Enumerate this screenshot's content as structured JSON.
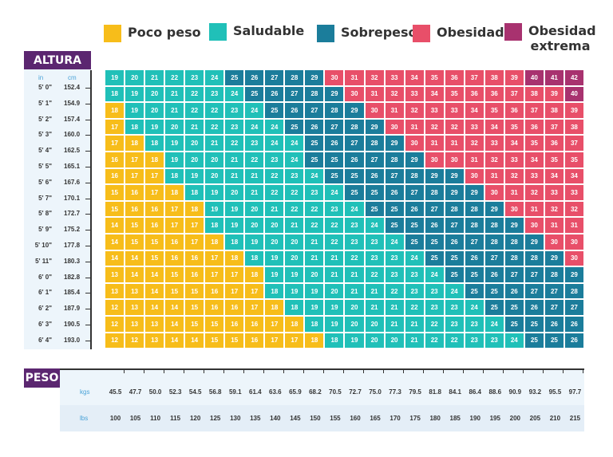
{
  "chart_data": {
    "type": "heatmap",
    "title": "",
    "legend": [
      {
        "key": "Y",
        "label": "Poco peso",
        "color": "#f7bd1a"
      },
      {
        "key": "T",
        "label": "Saludable",
        "color": "#20c0b8"
      },
      {
        "key": "B",
        "label": "Sobrepeso",
        "color": "#1b7d9b"
      },
      {
        "key": "R",
        "label": "Obesidad",
        "color": "#e84f69"
      },
      {
        "key": "P",
        "label": "Obesidad extrema",
        "color": "#a8326f"
      }
    ],
    "height_axis": {
      "title": "ALTURA",
      "unit_in": "in",
      "unit_cm": "cm"
    },
    "weight_axis": {
      "title": "PESO",
      "unit_kg": "kgs",
      "unit_lb": "lbs",
      "kgs": [
        "45.5",
        "47.7",
        "50.0",
        "52.3",
        "54.5",
        "56.8",
        "59.1",
        "61.4",
        "63.6",
        "65.9",
        "68.2",
        "70.5",
        "72.7",
        "75.0",
        "77.3",
        "79.5",
        "81.8",
        "84.1",
        "86.4",
        "88.6",
        "90.9",
        "93.2",
        "95.5",
        "97.7"
      ],
      "lbs": [
        "100",
        "105",
        "110",
        "115",
        "120",
        "125",
        "130",
        "135",
        "140",
        "145",
        "150",
        "155",
        "160",
        "165",
        "170",
        "175",
        "180",
        "185",
        "190",
        "195",
        "200",
        "205",
        "210",
        "215"
      ]
    },
    "rows": [
      {
        "in": "5' 0\"",
        "cm": "152.4",
        "bmi": [
          19,
          20,
          21,
          22,
          23,
          24,
          25,
          26,
          27,
          28,
          29,
          30,
          31,
          32,
          33,
          34,
          35,
          36,
          37,
          38,
          39,
          40,
          41,
          42
        ],
        "cat": "TTTTTTBBBBBRRRRRRRRRRPPP"
      },
      {
        "in": "5' 1\"",
        "cm": "154.9",
        "bmi": [
          18,
          19,
          20,
          21,
          22,
          23,
          24,
          25,
          26,
          27,
          28,
          29,
          30,
          31,
          32,
          33,
          34,
          35,
          36,
          36,
          37,
          38,
          39,
          40
        ],
        "cat": "TTTTTTTBBBBBRRRRRRRRRRRP"
      },
      {
        "in": "5' 2\"",
        "cm": "157.4",
        "bmi": [
          18,
          19,
          20,
          21,
          22,
          22,
          23,
          24,
          25,
          26,
          27,
          28,
          29,
          30,
          31,
          32,
          33,
          33,
          34,
          35,
          36,
          37,
          38,
          39
        ],
        "cat": "YTTTTTTTBBBBBRRRRRRRRRRR"
      },
      {
        "in": "5' 3\"",
        "cm": "160.0",
        "bmi": [
          17,
          18,
          19,
          20,
          21,
          22,
          23,
          24,
          24,
          25,
          26,
          27,
          28,
          29,
          30,
          31,
          32,
          32,
          33,
          34,
          35,
          36,
          37,
          38
        ],
        "cat": "YTTTTTTTTBBBBBRRRRRRRRRR"
      },
      {
        "in": "5' 4\"",
        "cm": "162.5",
        "bmi": [
          17,
          18,
          18,
          19,
          20,
          21,
          22,
          23,
          24,
          24,
          25,
          26,
          27,
          28,
          29,
          30,
          31,
          31,
          32,
          33,
          34,
          35,
          36,
          37
        ],
        "cat": "YYTTTTTTTTBBBBBRRRRRRRRR"
      },
      {
        "in": "5' 5\"",
        "cm": "165.1",
        "bmi": [
          16,
          17,
          18,
          19,
          20,
          20,
          21,
          22,
          23,
          24,
          25,
          25,
          26,
          27,
          28,
          29,
          30,
          30,
          31,
          32,
          33,
          34,
          35,
          35
        ],
        "cat": "YYYTTTTTTTBBBBBBRRRRRRRR"
      },
      {
        "in": "5' 6\"",
        "cm": "167.6",
        "bmi": [
          16,
          17,
          17,
          18,
          19,
          20,
          21,
          21,
          22,
          23,
          24,
          25,
          25,
          26,
          27,
          28,
          29,
          29,
          30,
          31,
          32,
          33,
          34,
          34
        ],
        "cat": "YYYTTTTTTTTBBBBBBBRRRRRR"
      },
      {
        "in": "5' 7\"",
        "cm": "170.1",
        "bmi": [
          15,
          16,
          17,
          18,
          18,
          19,
          20,
          21,
          22,
          22,
          23,
          24,
          25,
          25,
          26,
          27,
          28,
          29,
          29,
          30,
          31,
          32,
          33,
          33
        ],
        "cat": "YYYYTTTTTTTTBBBBBBBRRRRR"
      },
      {
        "in": "5' 8\"",
        "cm": "172.7",
        "bmi": [
          15,
          16,
          16,
          17,
          18,
          19,
          19,
          20,
          21,
          22,
          22,
          23,
          24,
          25,
          25,
          26,
          27,
          28,
          28,
          29,
          30,
          31,
          32,
          32
        ],
        "cat": "YYYYYTTTTTTTTBBBBBBBRRRR"
      },
      {
        "in": "5' 9\"",
        "cm": "175.2",
        "bmi": [
          14,
          15,
          16,
          17,
          17,
          18,
          19,
          20,
          20,
          21,
          22,
          22,
          23,
          24,
          25,
          25,
          26,
          27,
          28,
          28,
          29,
          30,
          31,
          31
        ],
        "cat": "YYYYYTTTTTTTTTBBBBBBBRRR"
      },
      {
        "in": "5' 10\"",
        "cm": "177.8",
        "bmi": [
          14,
          15,
          15,
          16,
          17,
          18,
          18,
          19,
          20,
          20,
          21,
          22,
          23,
          23,
          24,
          25,
          25,
          26,
          27,
          28,
          28,
          29,
          30,
          30
        ],
        "cat": "YYYYYYTTTTTTTTTBBBBBBBRR"
      },
      {
        "in": "5' 11\"",
        "cm": "180.3",
        "bmi": [
          14,
          14,
          15,
          16,
          16,
          17,
          18,
          18,
          19,
          20,
          21,
          21,
          22,
          23,
          23,
          24,
          25,
          25,
          26,
          27,
          28,
          28,
          29,
          30
        ],
        "cat": "YYYYYYYTTTTTTTTTBBBBBBBR"
      },
      {
        "in": "6' 0\"",
        "cm": "182.8",
        "bmi": [
          13,
          14,
          14,
          15,
          16,
          17,
          17,
          18,
          19,
          19,
          20,
          21,
          21,
          22,
          23,
          23,
          24,
          25,
          25,
          26,
          27,
          27,
          28,
          29
        ],
        "cat": "YYYYYYYYTTTTTTTTTBBBBBBB"
      },
      {
        "in": "6' 1\"",
        "cm": "185.4",
        "bmi": [
          13,
          13,
          14,
          15,
          15,
          16,
          17,
          17,
          18,
          19,
          19,
          20,
          21,
          21,
          22,
          23,
          23,
          24,
          25,
          25,
          26,
          27,
          27,
          28
        ],
        "cat": "YYYYYYYYTTTTTTTTTTBBBBBB"
      },
      {
        "in": "6' 2\"",
        "cm": "187.9",
        "bmi": [
          12,
          13,
          14,
          14,
          15,
          16,
          16,
          17,
          18,
          18,
          19,
          19,
          20,
          21,
          21,
          22,
          23,
          23,
          24,
          25,
          25,
          26,
          27,
          27
        ],
        "cat": "YYYYYYYYYTTTTTTTTTTBBBBB"
      },
      {
        "in": "6' 3\"",
        "cm": "190.5",
        "bmi": [
          12,
          13,
          13,
          14,
          15,
          15,
          16,
          16,
          17,
          18,
          18,
          19,
          20,
          20,
          21,
          21,
          22,
          23,
          23,
          24,
          25,
          25,
          26,
          26
        ],
        "cat": "YYYYYYYYYYTTTTTTTTTTBBBB"
      },
      {
        "in": "6' 4\"",
        "cm": "193.0",
        "bmi": [
          12,
          12,
          13,
          14,
          14,
          15,
          15,
          16,
          17,
          17,
          18,
          18,
          19,
          20,
          20,
          21,
          22,
          22,
          23,
          23,
          24,
          25,
          25,
          26
        ],
        "cat": "YYYYYYYYYYYTTTTTTTTTTBBB"
      }
    ]
  }
}
